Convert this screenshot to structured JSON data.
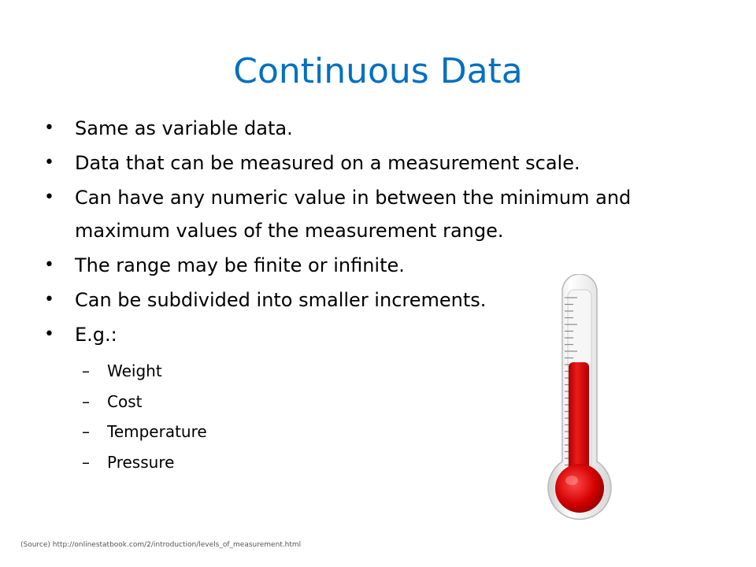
{
  "slide": {
    "title": "Continuous Data",
    "bullets": [
      {
        "marker": "•",
        "text": "Same as variable data."
      },
      {
        "marker": "•",
        "text": "Data that can be measured on a measurement scale."
      },
      {
        "marker": "•",
        "text": "Can have any numeric value in between the minimum and maximum values of the measurement range."
      },
      {
        "marker": "•",
        "text": "The range may be finite or infinite."
      },
      {
        "marker": "•",
        "text": "Can be subdivided into smaller increments."
      },
      {
        "marker": "•",
        "text": "E.g.:"
      }
    ],
    "examples": [
      {
        "marker": "–",
        "text": "Weight"
      },
      {
        "marker": "–",
        "text": "Cost"
      },
      {
        "marker": "–",
        "text": "Temperature"
      },
      {
        "marker": "–",
        "text": "Pressure"
      }
    ],
    "source": "(Source) http://onlinestatbook.com/2/introduction/levels_of_measurement.html"
  },
  "colors": {
    "title": "#0070c0",
    "mercury": "#d40000",
    "glass": "#e9e9e9"
  },
  "image": {
    "icon": "thermometer-icon",
    "fill_level": 0.62
  }
}
